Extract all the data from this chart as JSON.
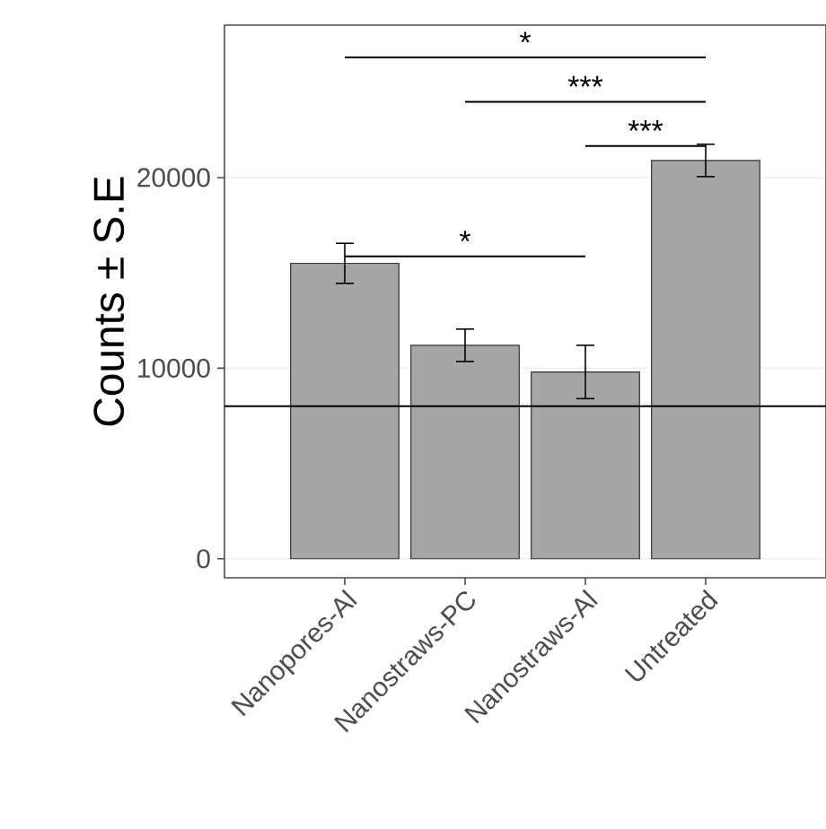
{
  "chart_data": {
    "type": "bar",
    "ylabel": "Counts ± S.E",
    "categories": [
      "Nanopores-Al",
      "Nanostraws-PC",
      "Nanostraws-Al",
      "Untreated"
    ],
    "values": [
      15500,
      11200,
      9800,
      20900
    ],
    "color": "#a6a6a6",
    "errors": [
      1050,
      850,
      1400,
      850
    ],
    "ylim": [
      -1000,
      28000
    ],
    "yticks": [
      0,
      10000,
      20000
    ],
    "grid": "y",
    "ref_lines": [
      {
        "axis": "y",
        "value": 8000,
        "color": "#000000"
      }
    ],
    "annotations": [
      "*",
      "***",
      "***",
      "*"
    ]
  }
}
